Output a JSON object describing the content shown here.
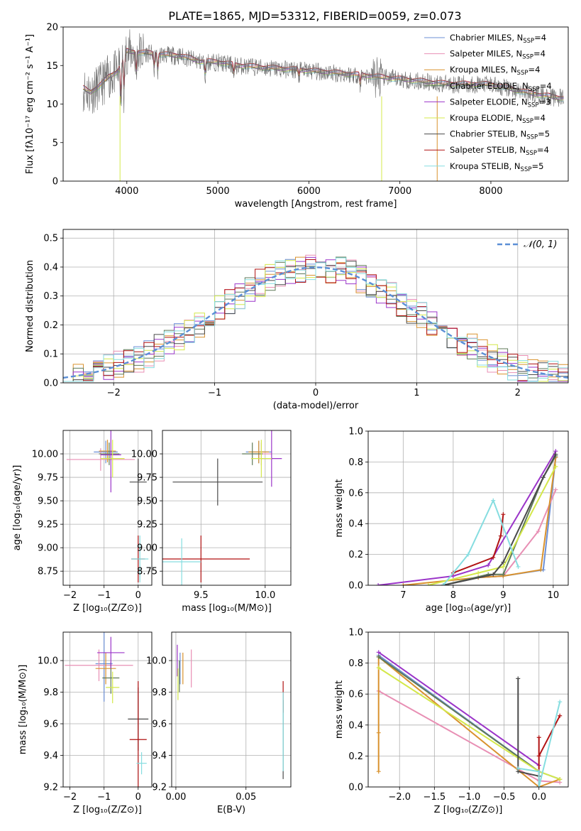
{
  "title": "PLATE=1865, MJD=53312, FIBERID=0059, z=0.073",
  "colors": [
    "#6b8fd6",
    "#e88fb4",
    "#d9922e",
    "#5f7a58",
    "#9b35c9",
    "#d4e84a",
    "#4a4a4a",
    "#b11212",
    "#86dde0"
  ],
  "chart_data": [
    {
      "id": "spectrum",
      "type": "line",
      "xlabel": "wavelength [Angstrom, rest frame]",
      "ylabel": "Flux [fλ10⁻¹⁷ erg cm⁻² s⁻¹ A⁻¹]",
      "xlim": [
        3300,
        8850
      ],
      "ylim": [
        0,
        20
      ],
      "xticks": [
        4000,
        5000,
        6000,
        7000,
        8000
      ],
      "yticks": [
        0,
        5,
        10,
        15,
        20
      ],
      "grid": false,
      "legend_position": "right",
      "legend": [
        {
          "label": "Chabrier MILES, N",
          "sub": "SSP",
          "suffix": "=4"
        },
        {
          "label": "Salpeter MILES, N",
          "sub": "SSP",
          "suffix": "=4"
        },
        {
          "label": "Kroupa MILES, N",
          "sub": "SSP",
          "suffix": "=4"
        },
        {
          "label": "Chabrier ELODIE, N",
          "sub": "SSP",
          "suffix": "=4"
        },
        {
          "label": "Salpeter ELODIE, N",
          "sub": "SSP",
          "suffix": "=3"
        },
        {
          "label": "Kroupa ELODIE, N",
          "sub": "SSP",
          "suffix": "=4"
        },
        {
          "label": "Chabrier STELIB, N",
          "sub": "SSP",
          "suffix": "=5"
        },
        {
          "label": "Salpeter STELIB, N",
          "sub": "SSP",
          "suffix": "=4"
        },
        {
          "label": "Kroupa STELIB, N",
          "sub": "SSP",
          "suffix": "=5"
        }
      ],
      "continuum": [
        [
          3520,
          12.0
        ],
        [
          3600,
          11.5
        ],
        [
          3700,
          12.3
        ],
        [
          3800,
          13.5
        ],
        [
          3900,
          14.2
        ],
        [
          3950,
          15.5
        ],
        [
          4000,
          16.8
        ],
        [
          4200,
          16.6
        ],
        [
          4400,
          16.4
        ],
        [
          4600,
          16.2
        ],
        [
          4800,
          15.5
        ],
        [
          5000,
          15.4
        ],
        [
          5200,
          15.0
        ],
        [
          5500,
          14.7
        ],
        [
          6000,
          14.3
        ],
        [
          6500,
          13.8
        ],
        [
          7000,
          13.2
        ],
        [
          7500,
          12.6
        ],
        [
          8000,
          12.5
        ],
        [
          8500,
          11.2
        ],
        [
          8800,
          10.7
        ]
      ]
    },
    {
      "id": "residuals",
      "type": "step",
      "xlabel": "(data-model)/error",
      "ylabel": "Normed distribution",
      "xlim": [
        -2.5,
        2.5
      ],
      "ylim": [
        0,
        0.53
      ],
      "xticks": [
        -2,
        -1,
        0,
        1,
        2
      ],
      "yticks": [
        0.0,
        0.1,
        0.2,
        0.3,
        0.4,
        0.5
      ],
      "grid": true,
      "legend_label": "𝒩(0, 1)",
      "legend_position": "top-right",
      "bin_width": 0.1
    },
    {
      "id": "age-vs-Z",
      "type": "scatter",
      "xlabel": "Z [log₁₀(Z/Z⊙)]",
      "ylabel": "age  [log₁₀(age/yr)]",
      "xlim": [
        -2.2,
        0.4
      ],
      "ylim": [
        8.6,
        10.25
      ],
      "xticks": [
        -2,
        -1,
        0
      ],
      "yticks": [
        8.75,
        9.0,
        9.25,
        9.5,
        9.75,
        10.0
      ],
      "grid": true,
      "points": [
        {
          "s": 0,
          "x": -0.95,
          "xe": 0.35,
          "y": 10.02,
          "ye": 0.12
        },
        {
          "s": 1,
          "x": -1.1,
          "xe": 1.0,
          "y": 9.94,
          "ye": 0.12
        },
        {
          "s": 2,
          "x": -0.9,
          "xe": 0.25,
          "y": 10.03,
          "ye": 0.12
        },
        {
          "s": 3,
          "x": -0.85,
          "xe": 0.3,
          "y": 10.0,
          "ye": 0.12
        },
        {
          "s": 4,
          "x": -0.8,
          "xe": 0.3,
          "y": 9.99,
          "ye": 0.4
        },
        {
          "s": 5,
          "x": -0.75,
          "xe": 0.35,
          "y": 9.95,
          "ye": 0.2
        },
        {
          "s": 6,
          "x": 0.0,
          "xe": 0.25,
          "y": 9.7,
          "ye": 0.25
        },
        {
          "s": 7,
          "x": 0.0,
          "xe": 0.2,
          "y": 8.88,
          "ye": 0.25
        },
        {
          "s": 8,
          "x": 0.05,
          "xe": 0.25,
          "y": 8.88,
          "ye": 0.25
        }
      ]
    },
    {
      "id": "age-vs-mass",
      "type": "scatter",
      "xlabel": "mass [log₁₀(M/M⊙)]",
      "ylabel": "",
      "xlim": [
        9.2,
        10.2
      ],
      "ylim": [
        8.6,
        10.25
      ],
      "xticks": [
        9.5,
        10.0
      ],
      "yticks": [
        8.75,
        9.0,
        9.25,
        9.5,
        9.75,
        10.0
      ],
      "grid": true,
      "points": [
        {
          "s": 0,
          "x": 9.95,
          "xe": 0.1,
          "y": 10.02,
          "ye": 0.12
        },
        {
          "s": 1,
          "x": 9.97,
          "xe": 0.08,
          "y": 10.0,
          "ye": 0.12
        },
        {
          "s": 2,
          "x": 9.95,
          "xe": 0.08,
          "y": 10.02,
          "ye": 0.12
        },
        {
          "s": 3,
          "x": 9.9,
          "xe": 0.08,
          "y": 10.0,
          "ye": 0.12
        },
        {
          "s": 4,
          "x": 10.05,
          "xe": 0.08,
          "y": 9.95,
          "ye": 0.3
        },
        {
          "s": 5,
          "x": 9.97,
          "xe": 0.08,
          "y": 9.95,
          "ye": 0.2
        },
        {
          "s": 6,
          "x": 9.63,
          "xe": 0.35,
          "y": 9.7,
          "ye": 0.25
        },
        {
          "s": 7,
          "x": 9.5,
          "xe": 0.38,
          "y": 8.88,
          "ye": 0.25
        },
        {
          "s": 8,
          "x": 9.35,
          "xe": 0.15,
          "y": 8.85,
          "ye": 0.25
        }
      ]
    },
    {
      "id": "massweight-vs-age",
      "type": "line",
      "xlabel": "age  [log₁₀(age/yr)]",
      "ylabel": "mass weight",
      "xlim": [
        6.3,
        10.3
      ],
      "ylim": [
        0,
        1.0
      ],
      "xticks": [
        7,
        8,
        9,
        10
      ],
      "yticks": [
        0.0,
        0.2,
        0.4,
        0.6,
        0.8,
        1.0
      ],
      "grid": true,
      "series": [
        {
          "s": 0,
          "pts": [
            [
              7.8,
              0.0
            ],
            [
              8.5,
              0.05
            ],
            [
              9.0,
              0.06
            ],
            [
              9.8,
              0.1
            ],
            [
              10.05,
              0.83
            ]
          ]
        },
        {
          "s": 1,
          "pts": [
            [
              7.8,
              0.0
            ],
            [
              8.5,
              0.05
            ],
            [
              9.0,
              0.06
            ],
            [
              9.7,
              0.35
            ],
            [
              10.05,
              0.62
            ]
          ]
        },
        {
          "s": 2,
          "pts": [
            [
              7.0,
              0.0
            ],
            [
              8.5,
              0.05
            ],
            [
              9.0,
              0.06
            ],
            [
              9.75,
              0.1
            ],
            [
              10.05,
              0.83
            ]
          ]
        },
        {
          "s": 3,
          "pts": [
            [
              7.8,
              0.0
            ],
            [
              8.7,
              0.07
            ],
            [
              9.0,
              0.07
            ],
            [
              9.8,
              0.7
            ],
            [
              10.05,
              0.84
            ]
          ]
        },
        {
          "s": 4,
          "pts": [
            [
              6.5,
              0.0
            ],
            [
              8.0,
              0.06
            ],
            [
              8.7,
              0.13
            ],
            [
              10.05,
              0.87
            ]
          ]
        },
        {
          "s": 5,
          "pts": [
            [
              7.5,
              0.0
            ],
            [
              8.5,
              0.08
            ],
            [
              9.0,
              0.12
            ],
            [
              10.05,
              0.77
            ]
          ]
        },
        {
          "s": 6,
          "pts": [
            [
              7.8,
              0.0
            ],
            [
              8.8,
              0.07
            ],
            [
              9.0,
              0.15
            ],
            [
              9.8,
              0.7
            ],
            [
              10.05,
              0.85
            ]
          ]
        },
        {
          "s": 7,
          "pts": [
            [
              8.0,
              0.08
            ],
            [
              8.8,
              0.18
            ],
            [
              8.95,
              0.32
            ],
            [
              9.0,
              0.46
            ]
          ]
        },
        {
          "s": 8,
          "pts": [
            [
              7.8,
              0.0
            ],
            [
              8.3,
              0.2
            ],
            [
              8.8,
              0.55
            ],
            [
              9.3,
              0.12
            ]
          ]
        }
      ]
    },
    {
      "id": "mass-vs-Z",
      "type": "scatter",
      "xlabel": "Z [log₁₀(Z/Z⊙)]",
      "ylabel": "mass [log₁₀(M/M⊙)]",
      "xlim": [
        -2.2,
        0.4
      ],
      "ylim": [
        9.2,
        10.18
      ],
      "xticks": [
        -2,
        -1,
        0
      ],
      "yticks": [
        9.2,
        9.4,
        9.6,
        9.8,
        10.0
      ],
      "grid": true,
      "points": [
        {
          "s": 0,
          "x": -1.0,
          "xe": 0.25,
          "y": 9.98,
          "ye": 0.24
        },
        {
          "s": 1,
          "x": -1.15,
          "xe": 1.0,
          "y": 9.97,
          "ye": 0.1
        },
        {
          "s": 2,
          "x": -0.95,
          "xe": 0.3,
          "y": 9.95,
          "ye": 0.1
        },
        {
          "s": 3,
          "x": -0.8,
          "xe": 0.25,
          "y": 9.89,
          "ye": 0.1
        },
        {
          "s": 4,
          "x": -0.8,
          "xe": 0.4,
          "y": 10.05,
          "ye": 0.1
        },
        {
          "s": 5,
          "x": -0.75,
          "xe": 0.2,
          "y": 9.83,
          "ye": 0.1
        },
        {
          "s": 6,
          "x": 0.0,
          "xe": 0.3,
          "y": 9.63,
          "ye": 0.2
        },
        {
          "s": 7,
          "x": 0.0,
          "xe": 0.25,
          "y": 9.5,
          "ye": 0.37
        },
        {
          "s": 8,
          "x": 0.1,
          "xe": 0.15,
          "y": 9.35,
          "ye": 0.07
        }
      ]
    },
    {
      "id": "mass-vs-EBV",
      "type": "scatter",
      "xlabel": "E(B-V)",
      "ylabel": "",
      "xlim": [
        -0.003,
        0.082
      ],
      "ylim": [
        9.2,
        10.18
      ],
      "xticks": [
        0.0,
        0.05
      ],
      "yticks": [
        9.2,
        9.4,
        9.6,
        9.8,
        10.0
      ],
      "grid": true,
      "points": [
        {
          "s": 0,
          "x": 0.003,
          "xe": 0,
          "y": 9.95,
          "ye": 0.1
        },
        {
          "s": 1,
          "x": 0.011,
          "xe": 0,
          "y": 9.95,
          "ye": 0.12
        },
        {
          "s": 2,
          "x": 0.005,
          "xe": 0,
          "y": 9.95,
          "ye": 0.1
        },
        {
          "s": 3,
          "x": 0.0025,
          "xe": 0,
          "y": 9.9,
          "ye": 0.1
        },
        {
          "s": 4,
          "x": 0.001,
          "xe": 0,
          "y": 10.0,
          "ye": 0.1
        },
        {
          "s": 5,
          "x": 0.0015,
          "xe": 0,
          "y": 9.85,
          "ye": 0.1
        },
        {
          "s": 6,
          "x": 0.0765,
          "xe": 0,
          "y": 9.5,
          "ye": 0.25
        },
        {
          "s": 7,
          "x": 0.0765,
          "xe": 0,
          "y": 9.77,
          "ye": 0.1
        },
        {
          "s": 8,
          "x": 0.0765,
          "xe": 0,
          "y": 9.55,
          "ye": 0.25
        }
      ]
    },
    {
      "id": "massweight-vs-Z",
      "type": "line",
      "xlabel": "Z [log₁₀(Z/Z⊙)]",
      "ylabel": "mass weight",
      "xlim": [
        -2.45,
        0.42
      ],
      "ylim": [
        0,
        1.0
      ],
      "xticks": [
        -2.0,
        -1.5,
        -1.0,
        -0.5,
        0.0
      ],
      "yticks": [
        0.0,
        0.2,
        0.4,
        0.6,
        0.8,
        1.0
      ],
      "grid": true,
      "series": [
        {
          "s": 0,
          "pts": [
            [
              -2.3,
              0.85
            ],
            [
              0.0,
              0.1
            ],
            [
              0.3,
              0.05
            ]
          ]
        },
        {
          "s": 1,
          "pts": [
            [
              -2.3,
              0.62
            ],
            [
              0.0,
              0.04
            ],
            [
              0.3,
              0.03
            ]
          ]
        },
        {
          "s": 2,
          "pts": [
            [
              -2.3,
              0.35
            ],
            [
              -2.3,
              0.1
            ],
            [
              -2.3,
              0.84
            ],
            [
              0.0,
              0.0
            ],
            [
              0.3,
              0.05
            ]
          ]
        },
        {
          "s": 3,
          "pts": [
            [
              -2.3,
              0.84
            ],
            [
              0.0,
              0.1
            ]
          ]
        },
        {
          "s": 4,
          "pts": [
            [
              -2.3,
              0.87
            ],
            [
              0.0,
              0.14
            ]
          ]
        },
        {
          "s": 5,
          "pts": [
            [
              -2.3,
              0.77
            ],
            [
              0.0,
              0.1
            ],
            [
              0.3,
              0.05
            ]
          ]
        },
        {
          "s": 6,
          "pts": [
            [
              -0.3,
              0.7
            ],
            [
              -0.3,
              0.1
            ],
            [
              0.0,
              0.07
            ]
          ]
        },
        {
          "s": 7,
          "pts": [
            [
              0.0,
              0.32
            ],
            [
              0.0,
              0.0
            ],
            [
              0.0,
              0.2
            ],
            [
              0.3,
              0.46
            ]
          ]
        },
        {
          "s": 8,
          "pts": [
            [
              -0.3,
              0.12
            ],
            [
              0.0,
              0.1
            ],
            [
              0.0,
              0.0
            ],
            [
              0.3,
              0.55
            ]
          ]
        }
      ]
    }
  ]
}
